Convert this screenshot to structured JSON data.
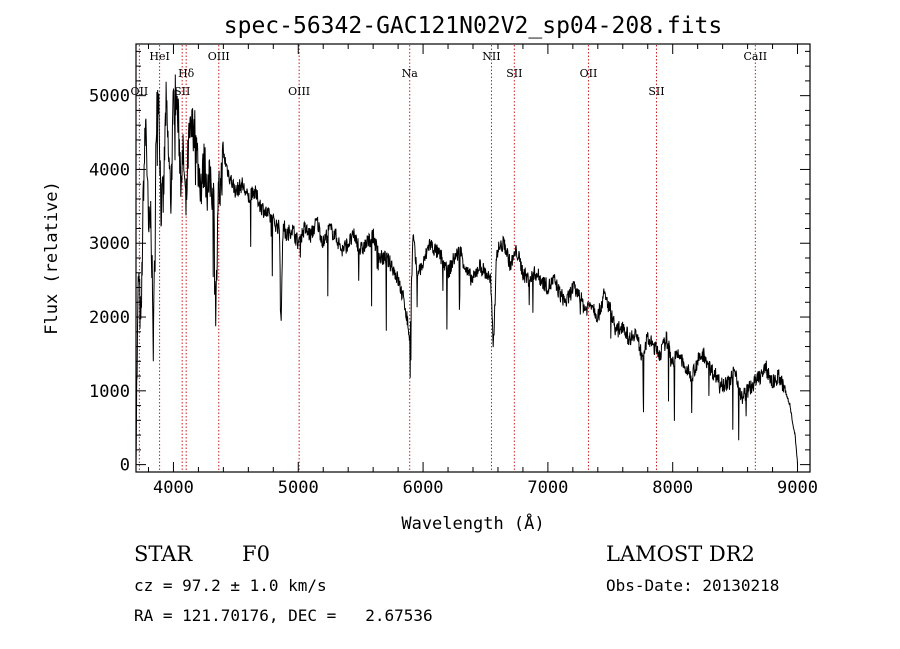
{
  "chart_data": {
    "type": "line",
    "title": "spec-56342-GAC121N02V2_sp04-208.fits",
    "xlabel": "Wavelength (Å)",
    "ylabel": "Flux (relative)",
    "xlim": [
      3700,
      9100
    ],
    "ylim": [
      -100,
      5700
    ],
    "xticks": [
      4000,
      5000,
      6000,
      7000,
      8000,
      9000
    ],
    "yticks": [
      0,
      1000,
      2000,
      3000,
      4000,
      5000
    ],
    "grid": false,
    "line_color": "#000000",
    "marker_color": "#cc2020",
    "spectral_lines": [
      {
        "name": "OII",
        "wavelength": 3727,
        "row": 2
      },
      {
        "name": "HeI",
        "wavelength": 3889,
        "row": 0
      },
      {
        "name": "SII",
        "wavelength": 4070,
        "row": 2
      },
      {
        "name": "Hδ",
        "wavelength": 4102,
        "row": 1
      },
      {
        "name": "OIII",
        "wavelength": 4363,
        "row": 0
      },
      {
        "name": "OIII",
        "wavelength": 5007,
        "row": 2
      },
      {
        "name": "Na",
        "wavelength": 5893,
        "row": 1
      },
      {
        "name": "NII",
        "wavelength": 6548,
        "row": 0
      },
      {
        "name": "SII",
        "wavelength": 6731,
        "row": 1
      },
      {
        "name": "OII",
        "wavelength": 7325,
        "row": 1
      },
      {
        "name": "SII",
        "wavelength": 7870,
        "row": 2
      },
      {
        "name": "CaII",
        "wavelength": 8662,
        "row": 0
      }
    ],
    "series": [
      {
        "x": [
          3700,
          3720,
          3740,
          3760,
          3780,
          3800,
          3820,
          3840,
          3860,
          3880,
          3900,
          3920,
          3940,
          3960,
          3980,
          4000,
          4020,
          4040,
          4060,
          4080,
          4100,
          4120,
          4140,
          4160,
          4180,
          4200,
          4225,
          4250,
          4275,
          4300,
          4325,
          4340,
          4360,
          4380,
          4400,
          4450,
          4500,
          4550,
          4600,
          4650,
          4700,
          4750,
          4800,
          4850,
          4861,
          4880,
          4900,
          4950,
          5000,
          5050,
          5100,
          5150,
          5200,
          5250,
          5300,
          5350,
          5400,
          5450,
          5500,
          5550,
          5600,
          5650,
          5700,
          5750,
          5800,
          5850,
          5870,
          5893,
          5920,
          5950,
          6000,
          6050,
          6100,
          6150,
          6200,
          6250,
          6300,
          6350,
          6400,
          6450,
          6500,
          6540,
          6563,
          6590,
          6650,
          6700,
          6750,
          6800,
          6850,
          6900,
          6950,
          7000,
          7050,
          7100,
          7150,
          7200,
          7250,
          7300,
          7350,
          7400,
          7450,
          7500,
          7550,
          7600,
          7650,
          7700,
          7750,
          7800,
          7850,
          7900,
          7950,
          8000,
          8050,
          8100,
          8150,
          8200,
          8250,
          8300,
          8350,
          8400,
          8450,
          8500,
          8550,
          8600,
          8650,
          8700,
          8750,
          8800,
          8850,
          8900,
          8940,
          8980,
          9000
        ],
        "y": [
          300,
          2600,
          1800,
          3800,
          4700,
          3100,
          3400,
          1500,
          4500,
          5200,
          3500,
          3600,
          4900,
          4200,
          3600,
          4900,
          5000,
          4600,
          3900,
          4200,
          3400,
          4300,
          4500,
          4600,
          4400,
          4000,
          3800,
          4100,
          3700,
          3900,
          3500,
          2000,
          3600,
          3800,
          4200,
          3900,
          3700,
          3800,
          3600,
          3700,
          3500,
          3400,
          3300,
          3200,
          1900,
          3300,
          3100,
          3200,
          3000,
          3200,
          3100,
          3300,
          3000,
          3200,
          3100,
          2900,
          3000,
          3100,
          2900,
          3000,
          3100,
          2800,
          2800,
          2700,
          2500,
          2200,
          2000,
          1700,
          3100,
          2600,
          2700,
          3000,
          2900,
          2800,
          2600,
          2800,
          2900,
          2600,
          2500,
          2700,
          2600,
          2500,
          1600,
          2900,
          3000,
          2700,
          2900,
          2600,
          2500,
          2600,
          2500,
          2400,
          2500,
          2300,
          2200,
          2400,
          2300,
          2100,
          2200,
          2000,
          2300,
          2100,
          1800,
          1900,
          1700,
          1800,
          1500,
          1700,
          1600,
          1500,
          1700,
          1400,
          1500,
          1300,
          1200,
          1400,
          1500,
          1300,
          1200,
          1100,
          1100,
          1300,
          900,
          1000,
          1100,
          1200,
          1300,
          1100,
          1200,
          1000,
          800,
          400,
          0
        ]
      }
    ]
  },
  "info": {
    "object_type": "STAR",
    "subclass": "F0",
    "cz": "cz = 97.2 ± 1.0 km/s",
    "coords": "RA = 121.70176, DEC =   2.67536",
    "survey": "LAMOST DR2",
    "obs_date": "Obs-Date: 20130218"
  }
}
